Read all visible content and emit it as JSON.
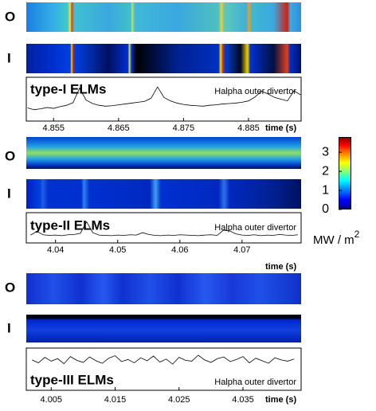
{
  "chart_data": [
    {
      "type": "line",
      "title": "type-I ELMs",
      "annotation": "Halpha outer divertor",
      "xlabel": "time (s)",
      "row_labels": [
        "O",
        "I"
      ],
      "color": "#000000",
      "x": [
        4.851,
        4.852,
        4.853,
        4.854,
        4.855,
        4.856,
        4.857,
        4.858,
        4.859,
        4.86,
        4.861,
        4.862,
        4.863,
        4.864,
        4.865,
        4.866,
        4.867,
        4.868,
        4.869,
        4.87,
        4.871,
        4.872,
        4.873,
        4.874,
        4.875,
        4.876,
        4.877,
        4.878,
        4.879,
        4.88,
        4.881,
        4.882,
        4.883,
        4.884,
        4.885,
        4.886,
        4.887,
        4.888,
        4.889,
        4.89,
        4.891,
        4.892,
        4.893
      ],
      "values": [
        3.0,
        2.6,
        2.8,
        3.1,
        2.9,
        3.3,
        3.6,
        4.2,
        7.5,
        4.8,
        4.0,
        3.6,
        3.4,
        3.5,
        3.7,
        3.9,
        4.1,
        4.3,
        4.5,
        5.2,
        7.8,
        5.4,
        4.6,
        4.1,
        3.8,
        3.6,
        3.5,
        3.4,
        3.6,
        3.7,
        3.9,
        4.0,
        4.1,
        4.3,
        4.6,
        5.5,
        6.8,
        6.2,
        5.4,
        5.0,
        4.6,
        6.9,
        6.0
      ],
      "xlim": [
        4.8508,
        4.8931
      ],
      "ylim": [
        0,
        10
      ],
      "xticks": [
        4.855,
        4.865,
        4.875,
        4.885
      ]
    },
    {
      "type": "line",
      "title": "type-II ELMs",
      "annotation": "Halpha outer divertor",
      "xlabel": "time (s)",
      "row_labels": [
        "O",
        "I"
      ],
      "color": "#000000",
      "x": [
        4.036,
        4.037,
        4.038,
        4.039,
        4.04,
        4.041,
        4.042,
        4.043,
        4.044,
        4.045,
        4.046,
        4.047,
        4.048,
        4.049,
        4.05,
        4.051,
        4.052,
        4.053,
        4.054,
        4.055,
        4.056,
        4.057,
        4.058,
        4.059,
        4.06,
        4.061,
        4.062,
        4.063,
        4.064,
        4.065,
        4.066,
        4.067,
        4.068,
        4.069,
        4.07,
        4.071,
        4.072,
        4.073,
        4.074,
        4.075,
        4.076,
        4.077,
        4.078,
        4.079
      ],
      "values": [
        2.6,
        3.8,
        2.7,
        2.5,
        2.6,
        2.4,
        2.7,
        2.8,
        3.2,
        7.0,
        3.4,
        2.6,
        2.5,
        2.4,
        2.6,
        2.5,
        2.7,
        2.6,
        3.4,
        2.8,
        2.5,
        2.4,
        2.6,
        2.5,
        2.7,
        2.6,
        2.5,
        2.4,
        2.6,
        2.7,
        2.5,
        4.2,
        4.0,
        3.0,
        2.6,
        2.5,
        2.7,
        2.4,
        2.6,
        2.5,
        2.8,
        2.6,
        2.5,
        2.7
      ],
      "xlim": [
        4.0353,
        4.0795
      ],
      "ylim": [
        0,
        10
      ],
      "xticks": [
        4.04,
        4.05,
        4.06,
        4.07
      ]
    },
    {
      "type": "line",
      "title": "type-III ELMs",
      "annotation": "Halpha outer divertor",
      "xlabel": "time (s)",
      "row_labels": [
        "O",
        "I"
      ],
      "color": "#000000",
      "x": [
        4.002,
        4.003,
        4.004,
        4.005,
        4.006,
        4.007,
        4.008,
        4.009,
        4.01,
        4.011,
        4.012,
        4.013,
        4.014,
        4.015,
        4.016,
        4.017,
        4.018,
        4.019,
        4.02,
        4.021,
        4.022,
        4.023,
        4.024,
        4.025,
        4.026,
        4.027,
        4.028,
        4.029,
        4.03,
        4.031,
        4.032,
        4.033,
        4.034,
        4.035,
        4.036,
        4.037,
        4.038,
        4.039,
        4.04,
        4.041,
        4.042,
        4.043
      ],
      "values": [
        7.2,
        6.5,
        7.8,
        6.9,
        7.5,
        6.3,
        8.0,
        7.1,
        6.6,
        7.9,
        7.0,
        6.4,
        7.6,
        8.2,
        6.8,
        7.3,
        6.5,
        7.7,
        7.0,
        8.1,
        6.7,
        7.4,
        6.2,
        7.8,
        7.1,
        6.9,
        8.3,
        7.2,
        6.6,
        7.5,
        7.9,
        6.8,
        7.3,
        8.0,
        6.5,
        7.6,
        7.0,
        6.4,
        7.7,
        7.2,
        6.9,
        7.4
      ],
      "xlim": [
        4.0011,
        4.0441
      ],
      "ylim": [
        0,
        10
      ],
      "xticks": [
        4.005,
        4.015,
        4.025,
        4.035
      ]
    }
  ],
  "colorbar": {
    "label": "MW / m",
    "label_superscript": "2",
    "lim": [
      0,
      3.8
    ],
    "ticks": [
      0,
      1,
      2,
      3
    ]
  }
}
